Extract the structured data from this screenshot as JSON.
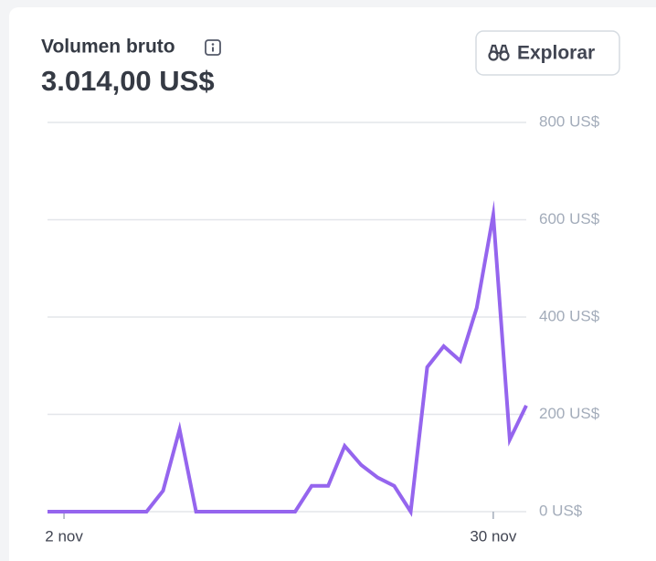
{
  "header": {
    "title": "Volumen bruto",
    "amount": "3.014,00 US$",
    "button": "Explorar"
  },
  "chart_data": {
    "type": "line",
    "categories": [
      null,
      "2 nov",
      null,
      null,
      null,
      null,
      null,
      null,
      null,
      null,
      null,
      null,
      null,
      null,
      null,
      null,
      null,
      null,
      null,
      null,
      null,
      null,
      null,
      null,
      null,
      null,
      null,
      "30 nov",
      null,
      null
    ],
    "values": [
      0,
      0,
      0,
      0,
      0,
      0,
      0,
      43,
      169,
      0,
      0,
      0,
      0,
      0,
      0,
      0,
      53,
      53,
      135,
      96,
      70,
      53,
      0,
      297,
      340,
      310,
      419,
      610,
      148,
      218
    ],
    "color": "#9565ee",
    "ylim": [
      0,
      800
    ],
    "yticks": [
      {
        "value": 0,
        "label": "0 US$"
      },
      {
        "value": 200,
        "label": "200 US$"
      },
      {
        "value": 400,
        "label": "400 US$"
      },
      {
        "value": 600,
        "label": "600 US$"
      },
      {
        "value": 800,
        "label": "800 US$"
      }
    ],
    "grid": true
  }
}
